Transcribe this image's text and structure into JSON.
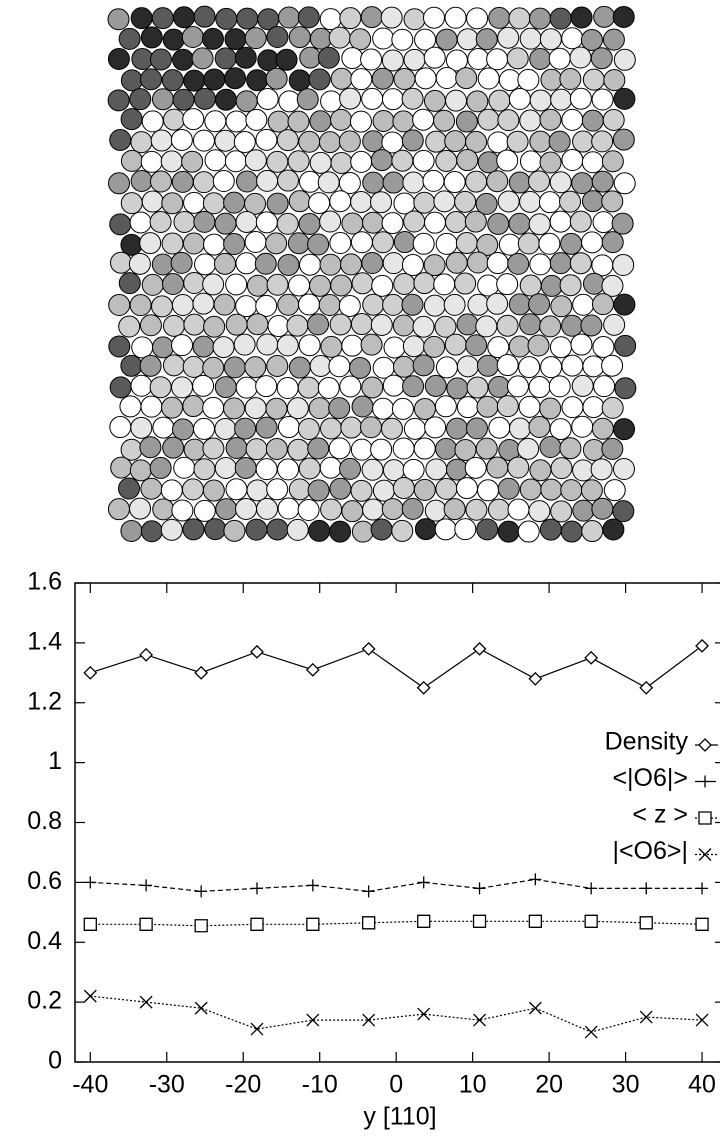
{
  "chart_data": {
    "type": "line",
    "xlabel": "y [110]",
    "x": [
      -40,
      -32.7,
      -25.5,
      -18.2,
      -10.9,
      -3.6,
      3.6,
      10.9,
      18.2,
      25.5,
      32.7,
      40
    ],
    "series": [
      {
        "name": "Density",
        "color": "#000000",
        "line_style": "solid",
        "marker": "diamond",
        "values": [
          1.3,
          1.36,
          1.3,
          1.37,
          1.31,
          1.38,
          1.25,
          1.38,
          1.28,
          1.35,
          1.25,
          1.39
        ]
      },
      {
        "name": "<|O6|>",
        "color": "#000000",
        "line_style": "dashed",
        "marker": "plus",
        "values": [
          0.6,
          0.59,
          0.57,
          0.58,
          0.59,
          0.57,
          0.6,
          0.58,
          0.61,
          0.58,
          0.58,
          0.58
        ]
      },
      {
        "name": "< z >",
        "color": "#000000",
        "line_style": "dotted",
        "marker": "square",
        "values": [
          0.46,
          0.46,
          0.455,
          0.46,
          0.46,
          0.465,
          0.47,
          0.47,
          0.47,
          0.47,
          0.465,
          0.46
        ]
      },
      {
        "name": "|<O6>|",
        "color": "#000000",
        "line_style": "dotted",
        "marker": "x",
        "values": [
          0.22,
          0.2,
          0.18,
          0.11,
          0.14,
          0.14,
          0.16,
          0.14,
          0.18,
          0.1,
          0.15,
          0.14
        ]
      }
    ],
    "xlim": [
      -42,
      43
    ],
    "ylim": [
      0,
      1.6
    ],
    "xticks": [
      -40,
      -30,
      -20,
      -10,
      0,
      10,
      20,
      30,
      40
    ],
    "yticks": [
      0,
      0.2,
      0.4,
      0.6,
      0.8,
      1,
      1.2,
      1.4,
      1.6
    ],
    "legend": "right"
  }
}
